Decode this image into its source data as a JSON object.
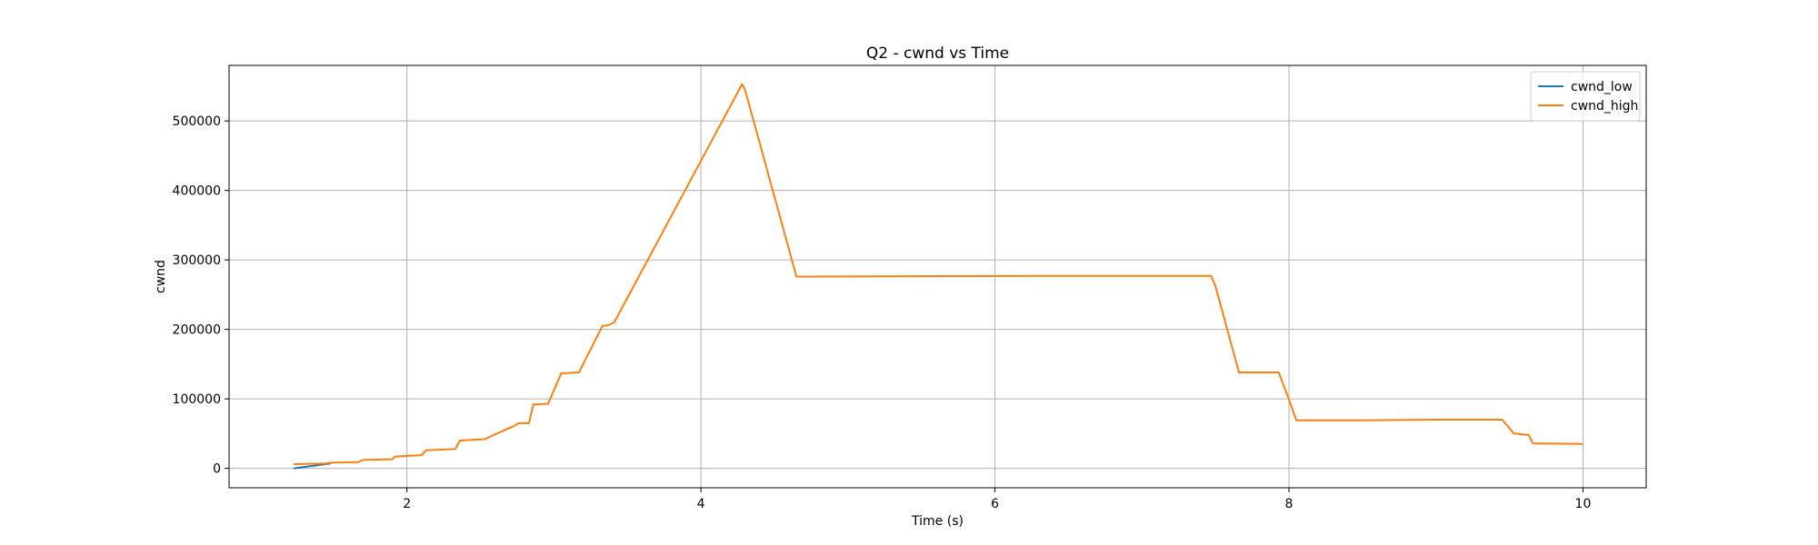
{
  "chart_data": {
    "type": "line",
    "title": "Q2 - cwnd vs Time",
    "xlabel": "Time (s)",
    "ylabel": "cwnd",
    "xlim": [
      0.79,
      10.43
    ],
    "ylim": [
      -28000,
      580000
    ],
    "x_ticks": [
      2,
      4,
      6,
      8,
      10
    ],
    "y_ticks": [
      0,
      100000,
      200000,
      300000,
      400000,
      500000
    ],
    "grid": true,
    "legend_position": "top-right",
    "series": [
      {
        "name": "cwnd_low",
        "color": "#1f77b4",
        "x": [
          1.23,
          1.48
        ],
        "y": [
          0,
          7000
        ]
      },
      {
        "name": "cwnd_high",
        "color": "#ff7f0e",
        "x": [
          1.23,
          1.45,
          1.47,
          1.67,
          1.7,
          1.9,
          1.92,
          2.1,
          2.13,
          2.33,
          2.36,
          2.53,
          2.58,
          2.73,
          2.76,
          2.83,
          2.86,
          2.96,
          3.05,
          3.09,
          3.17,
          3.33,
          3.37,
          3.41,
          4.28,
          4.3,
          4.65,
          5.5,
          6.5,
          7.47,
          7.5,
          7.66,
          7.73,
          7.93,
          7.99,
          8.05,
          8.5,
          9.0,
          9.45,
          9.53,
          9.63,
          9.66,
          9.8,
          10.0
        ],
        "y": [
          6000,
          7000,
          8000,
          9000,
          12000,
          13000,
          17000,
          19000,
          26000,
          28000,
          40000,
          42000,
          47000,
          61000,
          65000,
          65000,
          92000,
          93000,
          137000,
          137000,
          138000,
          205000,
          206000,
          210000,
          553000,
          545000,
          276000,
          276500,
          277000,
          277000,
          262000,
          138000,
          138000,
          138000,
          105000,
          69000,
          69000,
          70000,
          70000,
          50000,
          48000,
          36000,
          35500,
          35000
        ]
      }
    ]
  }
}
